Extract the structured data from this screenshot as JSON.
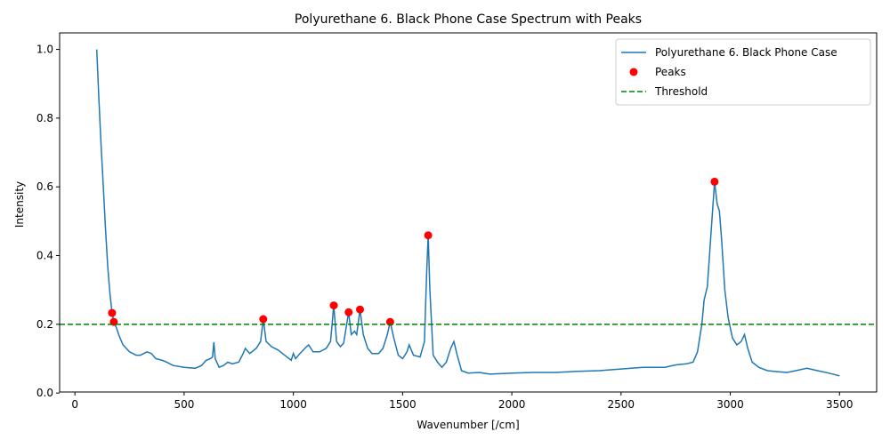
{
  "chart_data": {
    "type": "line",
    "title": "Polyurethane 6. Black Phone Case Spectrum with Peaks",
    "x_label": "Wavenumber [/cm]",
    "y_label": "Intensity",
    "xlim": [
      -70,
      3670
    ],
    "ylim": [
      0.003,
      1.048
    ],
    "xticks": [
      0,
      500,
      1000,
      1500,
      2000,
      2500,
      3000,
      3500
    ],
    "yticks": [
      {
        "value": 0,
        "label": "0.0"
      },
      0.2,
      0.4,
      0.6,
      0.8,
      {
        "value": 1,
        "label": "1.0"
      }
    ],
    "legend": "upper right",
    "series": [
      {
        "name": "Polyurethane 6. Black Phone Case",
        "kind": "line",
        "color": "#1f77b4",
        "x": [
          100,
          110,
          120,
          130,
          140,
          150,
          160,
          170,
          178,
          190,
          200,
          220,
          250,
          280,
          300,
          330,
          350,
          370,
          400,
          420,
          450,
          500,
          550,
          580,
          600,
          620,
          630,
          636,
          642,
          660,
          680,
          700,
          720,
          750,
          770,
          780,
          800,
          830,
          850,
          862,
          875,
          900,
          930,
          960,
          990,
          1000,
          1010,
          1030,
          1060,
          1070,
          1090,
          1120,
          1150,
          1170,
          1185,
          1198,
          1215,
          1230,
          1253,
          1265,
          1280,
          1290,
          1305,
          1320,
          1340,
          1360,
          1390,
          1410,
          1430,
          1443,
          1460,
          1480,
          1500,
          1520,
          1530,
          1550,
          1580,
          1600,
          1610,
          1617,
          1625,
          1640,
          1660,
          1680,
          1700,
          1720,
          1735,
          1750,
          1770,
          1800,
          1850,
          1900,
          2000,
          2100,
          2200,
          2300,
          2400,
          2500,
          2600,
          2700,
          2750,
          2800,
          2830,
          2850,
          2870,
          2880,
          2895,
          2910,
          2928,
          2940,
          2950,
          2960,
          2975,
          2990,
          3010,
          3030,
          3050,
          3065,
          3080,
          3100,
          3130,
          3170,
          3220,
          3260,
          3300,
          3350,
          3400,
          3450,
          3500
        ],
        "values": [
          1.0,
          0.85,
          0.72,
          0.6,
          0.48,
          0.37,
          0.29,
          0.233,
          0.207,
          0.19,
          0.17,
          0.14,
          0.12,
          0.11,
          0.11,
          0.12,
          0.115,
          0.1,
          0.095,
          0.09,
          0.08,
          0.075,
          0.072,
          0.08,
          0.095,
          0.1,
          0.105,
          0.148,
          0.1,
          0.075,
          0.08,
          0.09,
          0.085,
          0.09,
          0.115,
          0.13,
          0.115,
          0.13,
          0.15,
          0.215,
          0.15,
          0.135,
          0.125,
          0.11,
          0.095,
          0.115,
          0.1,
          0.115,
          0.135,
          0.14,
          0.12,
          0.12,
          0.13,
          0.15,
          0.255,
          0.15,
          0.135,
          0.145,
          0.235,
          0.17,
          0.18,
          0.17,
          0.243,
          0.17,
          0.13,
          0.115,
          0.115,
          0.13,
          0.17,
          0.207,
          0.16,
          0.11,
          0.1,
          0.12,
          0.14,
          0.11,
          0.105,
          0.15,
          0.35,
          0.459,
          0.3,
          0.11,
          0.09,
          0.075,
          0.09,
          0.13,
          0.15,
          0.11,
          0.065,
          0.058,
          0.06,
          0.055,
          0.058,
          0.06,
          0.06,
          0.063,
          0.065,
          0.07,
          0.075,
          0.075,
          0.082,
          0.085,
          0.09,
          0.12,
          0.2,
          0.27,
          0.31,
          0.45,
          0.615,
          0.55,
          0.53,
          0.45,
          0.3,
          0.22,
          0.16,
          0.14,
          0.15,
          0.17,
          0.13,
          0.09,
          0.075,
          0.065,
          0.062,
          0.06,
          0.065,
          0.072,
          0.065,
          0.058,
          0.05
        ]
      },
      {
        "name": "Peaks",
        "kind": "scatter",
        "color": "red",
        "x": [
          170,
          178,
          862,
          1185,
          1253,
          1305,
          1443,
          1617,
          2928
        ],
        "values": [
          0.233,
          0.207,
          0.215,
          0.255,
          0.235,
          0.243,
          0.207,
          0.459,
          0.615
        ]
      },
      {
        "name": "Threshold",
        "kind": "hline",
        "color": "green",
        "values": [
          0.2
        ]
      }
    ]
  }
}
